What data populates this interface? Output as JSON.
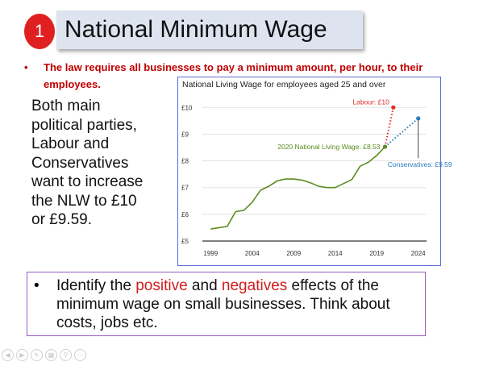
{
  "slide": {
    "number": "1",
    "title": "National Minimum Wage",
    "bullet": "The law requires all businesses to pay a minimum amount, per hour, to their employees.",
    "body_lines": [
      "Both main",
      "political parties,",
      "Labour and",
      "Conservatives",
      "want to increase",
      "the NLW to £10",
      "or £9.59."
    ],
    "question": {
      "part1": "Identify the ",
      "positive": "positive",
      "part2": " and ",
      "negatives": "negatives",
      "part3": " effects of the minimum wage on small businesses. Think about costs, jobs etc."
    }
  },
  "chart_data": {
    "type": "line",
    "title": "National Living Wage for employees aged 25 and over",
    "x_ticks": [
      "1999",
      "2004",
      "2009",
      "2014",
      "2019",
      "2024"
    ],
    "y_ticks": [
      "£5",
      "£6",
      "£7",
      "£8",
      "£9",
      "£10"
    ],
    "xlim": [
      1998,
      2025
    ],
    "ylim": [
      5,
      10.4
    ],
    "grid": true,
    "series": [
      {
        "name": "",
        "color": "#5b8c1e",
        "x": [
          1999,
          2000,
          2001,
          2002,
          2003,
          2004,
          2005,
          2006,
          2007,
          2008,
          2009,
          2010,
          2011,
          2012,
          2013,
          2014,
          2015,
          2016,
          2017,
          2018,
          2019,
          2020
        ],
        "y": [
          5.45,
          5.5,
          5.55,
          6.1,
          6.15,
          6.45,
          6.9,
          7.05,
          7.25,
          7.32,
          7.32,
          7.28,
          7.18,
          7.05,
          7.0,
          7.0,
          7.15,
          7.3,
          7.8,
          7.95,
          8.2,
          8.53
        ]
      }
    ],
    "annotations": [
      {
        "label": "2020 National Living Wage: £8.53",
        "x": 2020,
        "y": 8.53,
        "color": "#5b8c1e"
      },
      {
        "label": "Labour: £10",
        "x": 2021,
        "y": 10.0,
        "color": "#e02a2a"
      },
      {
        "label": "Conservatives: £9.59",
        "x": 2024,
        "y": 9.59,
        "color": "#2a7bbf"
      }
    ]
  }
}
